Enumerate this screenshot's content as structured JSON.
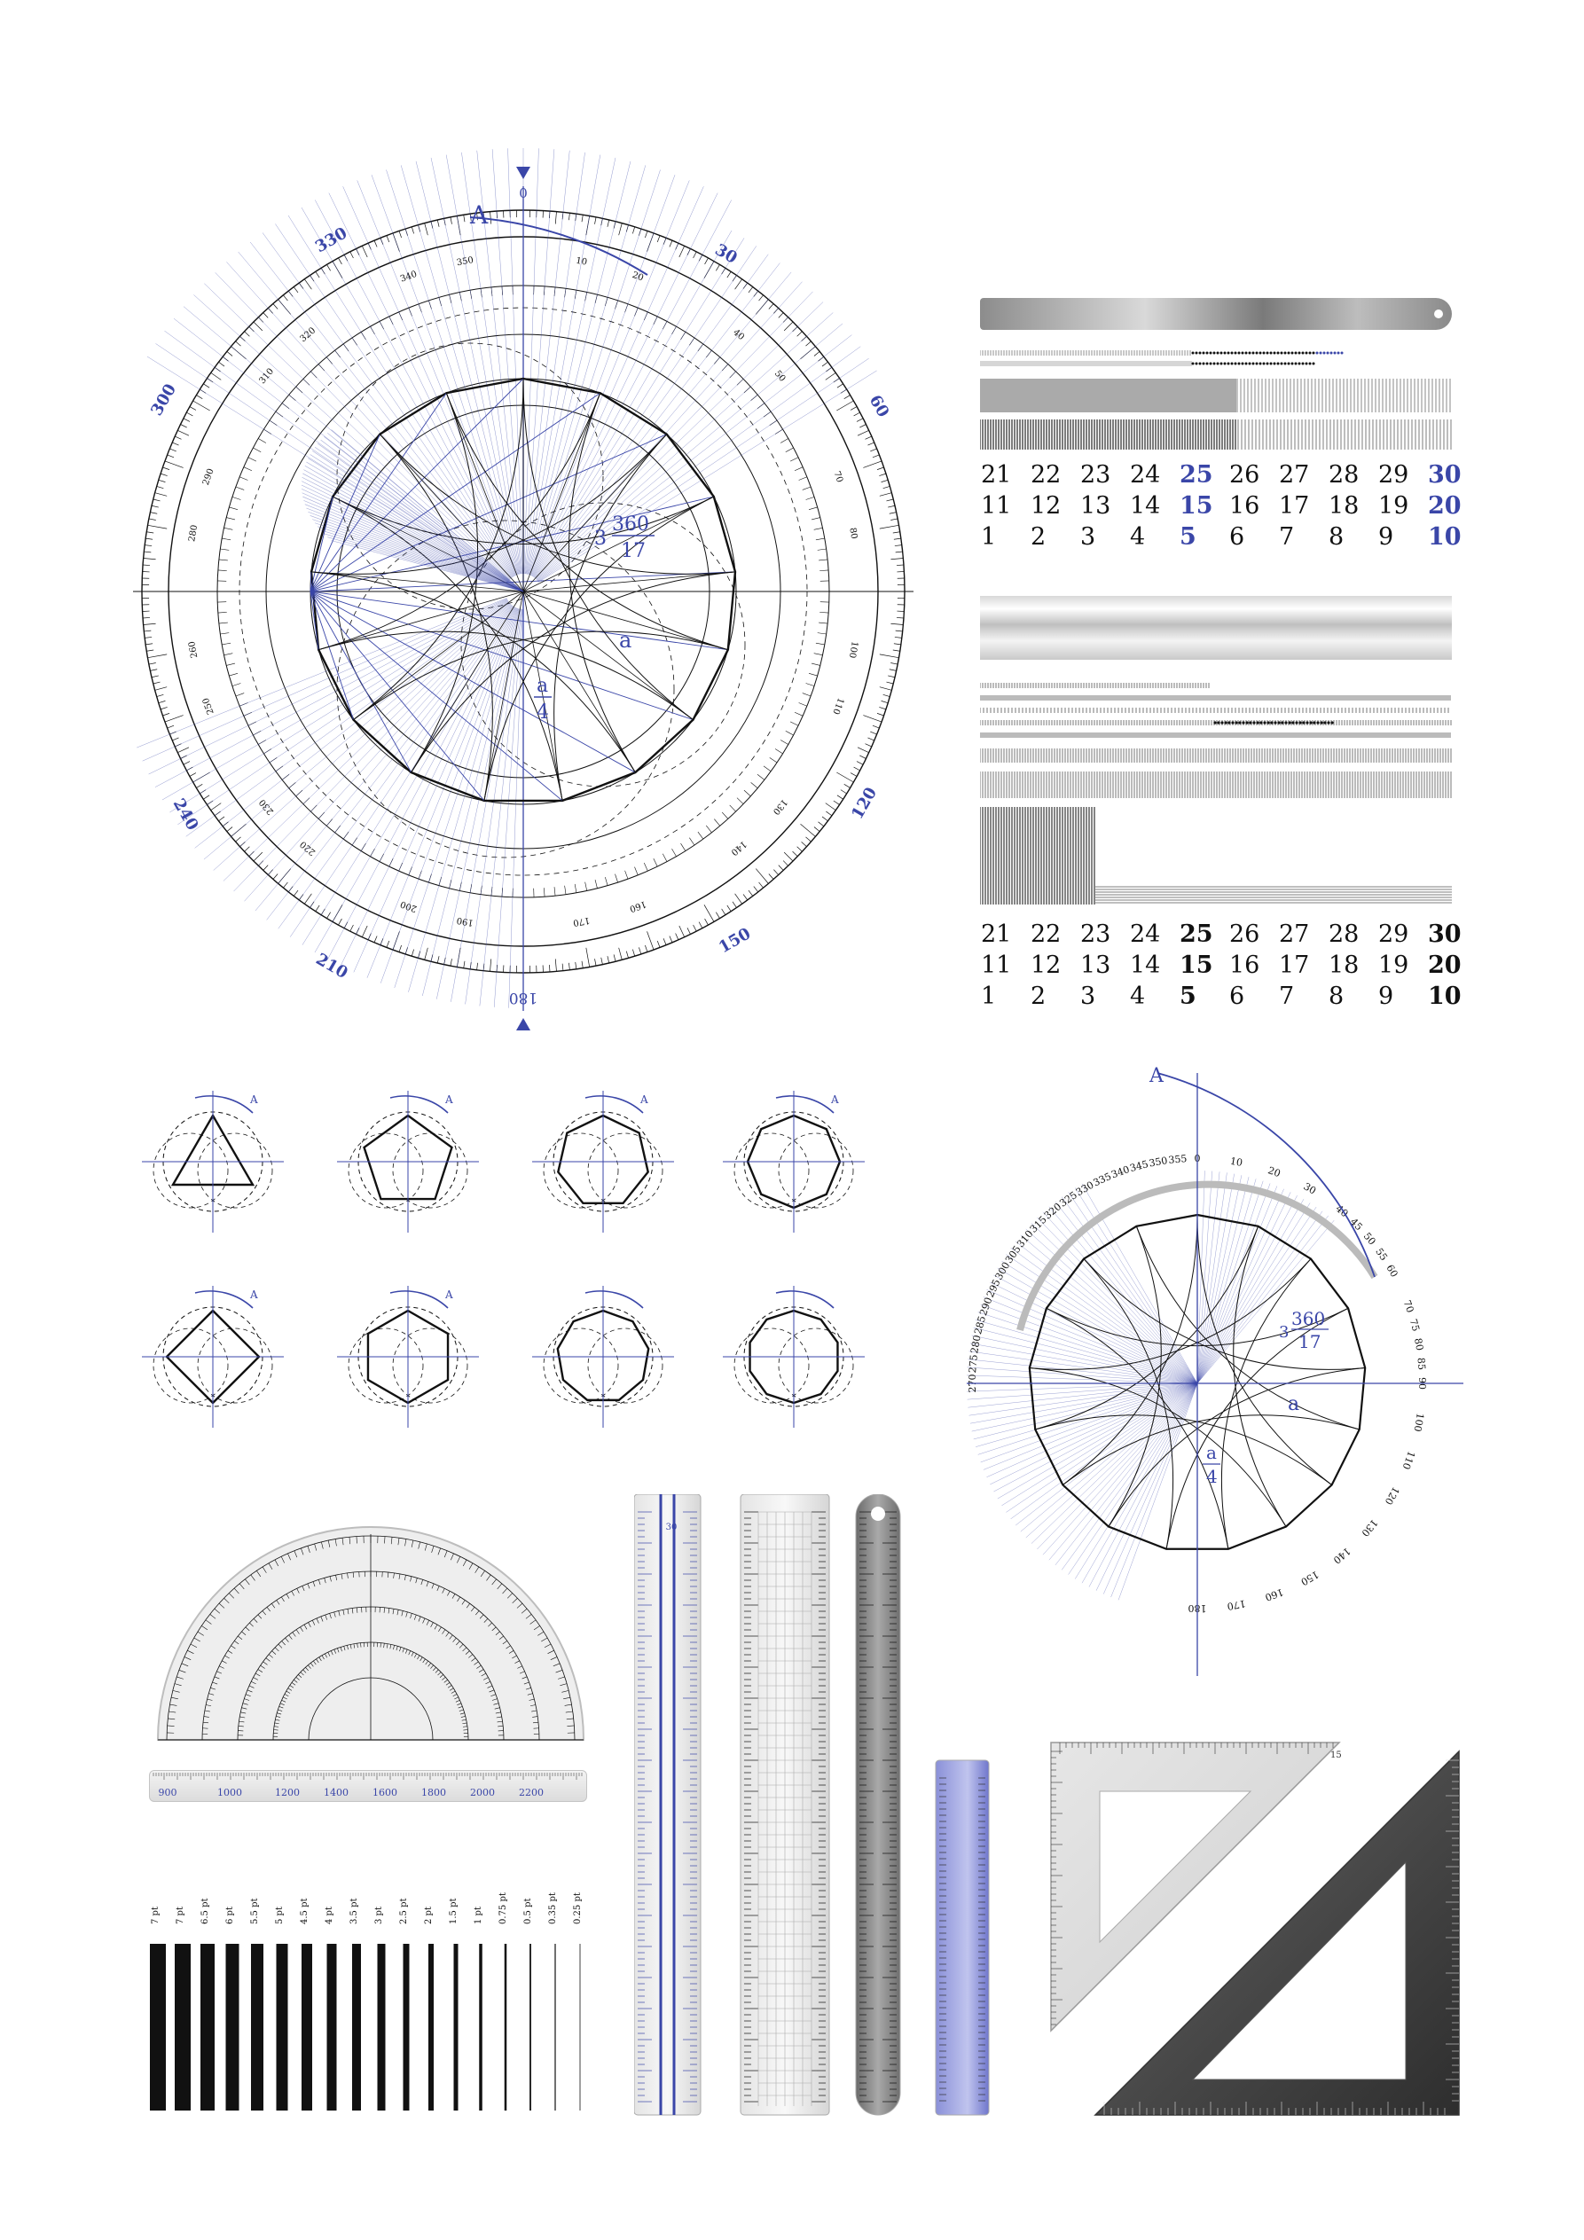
{
  "colors": {
    "accent": "#3a46a8",
    "ink": "#111111",
    "light": "#c8ccea",
    "steel": "#8a8a8a"
  },
  "big_protractor": {
    "top_label": "0",
    "bottom_label": "180",
    "vertex_label": "A",
    "outer_labels": [
      "330",
      "30",
      "300",
      "60",
      "240",
      "120",
      "210",
      "150"
    ],
    "fraction_num": "360",
    "fraction_den": "17",
    "fraction_prefix": "3",
    "a_label": "a",
    "quarter_num": "a",
    "quarter_den": "4"
  },
  "small_protractor": {
    "vertex_label": "A",
    "fraction_num": "360",
    "fraction_den": "17",
    "fraction_prefix": "3",
    "a_label": "a",
    "quarter_num": "a",
    "quarter_den": "4",
    "arc_labels": [
      "0",
      "10",
      "20",
      "30",
      "40",
      "45",
      "50",
      "55",
      "60",
      "70",
      "75",
      "80",
      "85",
      "90",
      "100",
      "110",
      "120",
      "130",
      "140",
      "150",
      "160",
      "170",
      "180",
      "270",
      "275",
      "280",
      "285",
      "290",
      "295",
      "300",
      "305",
      "310",
      "315",
      "320",
      "325",
      "330",
      "335",
      "340",
      "345",
      "350",
      "355"
    ]
  },
  "number_table_top": {
    "rows": [
      [
        "21",
        "22",
        "23",
        "24",
        "25",
        "26",
        "27",
        "28",
        "29",
        "30"
      ],
      [
        "11",
        "12",
        "13",
        "14",
        "15",
        "16",
        "17",
        "18",
        "19",
        "20"
      ],
      [
        "1",
        "2",
        "3",
        "4",
        "5",
        "6",
        "7",
        "8",
        "9",
        "10"
      ]
    ],
    "highlight_cols": [
      4,
      9
    ]
  },
  "number_table_bottom": {
    "rows": [
      [
        "21",
        "22",
        "23",
        "24",
        "25",
        "26",
        "27",
        "28",
        "29",
        "30"
      ],
      [
        "11",
        "12",
        "13",
        "14",
        "15",
        "16",
        "17",
        "18",
        "19",
        "20"
      ],
      [
        "1",
        "2",
        "3",
        "4",
        "5",
        "6",
        "7",
        "8",
        "9",
        "10"
      ]
    ],
    "bold_cols": [
      4,
      9
    ]
  },
  "polygon_constructions": {
    "labels": [
      "A",
      "A",
      "A",
      "A",
      "A",
      "A"
    ]
  },
  "long_ruler": {
    "labels": [
      "900",
      "1000",
      "1200",
      "1400",
      "1600",
      "1800",
      "2000",
      "2200"
    ]
  },
  "line_weights": {
    "labels": [
      "7 pt",
      "7 pt",
      "6.5 pt",
      "6 pt",
      "5.5 pt",
      "5 pt",
      "4.5 pt",
      "4 pt",
      "3.5 pt",
      "3 pt",
      "2.5 pt",
      "2 pt",
      "1.5 pt",
      "1 pt",
      "0.75 pt",
      "0.5 pt",
      "0.35 pt",
      "0.25 pt"
    ]
  },
  "vertical_rulers": {
    "max_label": "30"
  },
  "set_squares": {
    "label": "15"
  }
}
